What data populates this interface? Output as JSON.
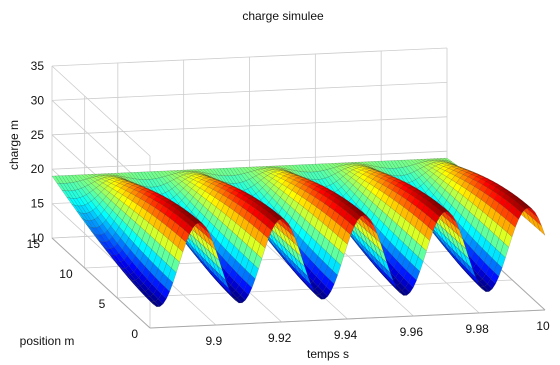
{
  "chart_data": {
    "type": "surface",
    "title": "charge simulee",
    "xlabel": "temps s",
    "ylabel": "position m",
    "zlabel": "charge m",
    "xlim": [
      9.88,
      10.0
    ],
    "ylim": [
      0,
      15
    ],
    "zlim": [
      10,
      35
    ],
    "xticks": [
      "9.9",
      "9.92",
      "9.94",
      "9.96",
      "9.98",
      "10"
    ],
    "yticks": [
      "0",
      "5",
      "10",
      "15"
    ],
    "zticks": [
      "10",
      "15",
      "20",
      "25",
      "30",
      "35"
    ],
    "grid": true,
    "colormap": "jet",
    "surface": {
      "mean": 19,
      "amplitude": 6,
      "period_s": 0.025,
      "peak_times_s": [
        9.895,
        9.92,
        9.945,
        9.97
      ],
      "trough_times_s": [
        9.8825,
        9.9075,
        9.9325,
        9.9575,
        9.9825
      ],
      "min": 13,
      "max": 25
    },
    "colors": {
      "low": "#00008f",
      "mid": "#7fff7f",
      "high": "#800000",
      "grid": "#cccccc",
      "axis": "#333333"
    }
  }
}
